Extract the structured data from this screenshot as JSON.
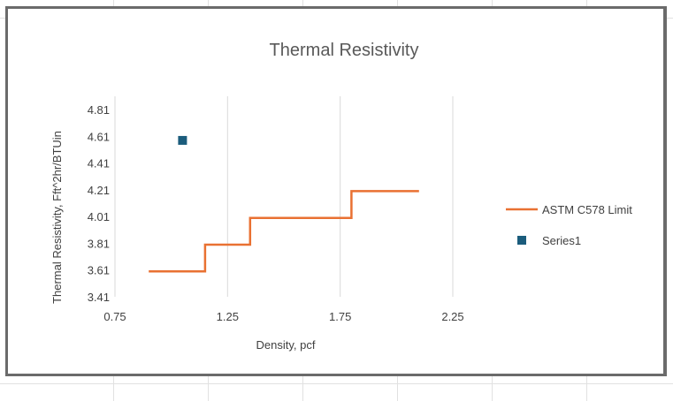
{
  "chart_data": {
    "type": "line",
    "title": "Thermal Resistivity",
    "xlabel": "Density, pcf",
    "ylabel": "Thermal Resistivity, Fft^2hr/BTUin",
    "xlim": [
      0.75,
      2.25
    ],
    "ylim": [
      3.41,
      4.91
    ],
    "x_ticks": [
      "0.75",
      "1.25",
      "1.75",
      "2.25"
    ],
    "x_tick_values": [
      0.75,
      1.25,
      1.75,
      2.25
    ],
    "y_ticks": [
      "3.41",
      "3.61",
      "3.81",
      "4.01",
      "4.21",
      "4.41",
      "4.61",
      "4.81"
    ],
    "y_tick_values": [
      3.41,
      3.61,
      3.81,
      4.01,
      4.21,
      4.41,
      4.61,
      4.81
    ],
    "grid": true,
    "legend_position": "right",
    "series": [
      {
        "name": "ASTM C578 Limit",
        "kind": "step-line",
        "color": "#e97132",
        "x": [
          0.9,
          1.15,
          1.15,
          1.35,
          1.35,
          1.8,
          1.8,
          2.1
        ],
        "y": [
          3.6,
          3.6,
          3.8,
          3.8,
          4.0,
          4.0,
          4.2,
          4.2
        ]
      },
      {
        "name": "Series1",
        "kind": "marker",
        "color": "#1b5c7c",
        "x": [
          1.05
        ],
        "y": [
          4.58
        ]
      }
    ]
  }
}
